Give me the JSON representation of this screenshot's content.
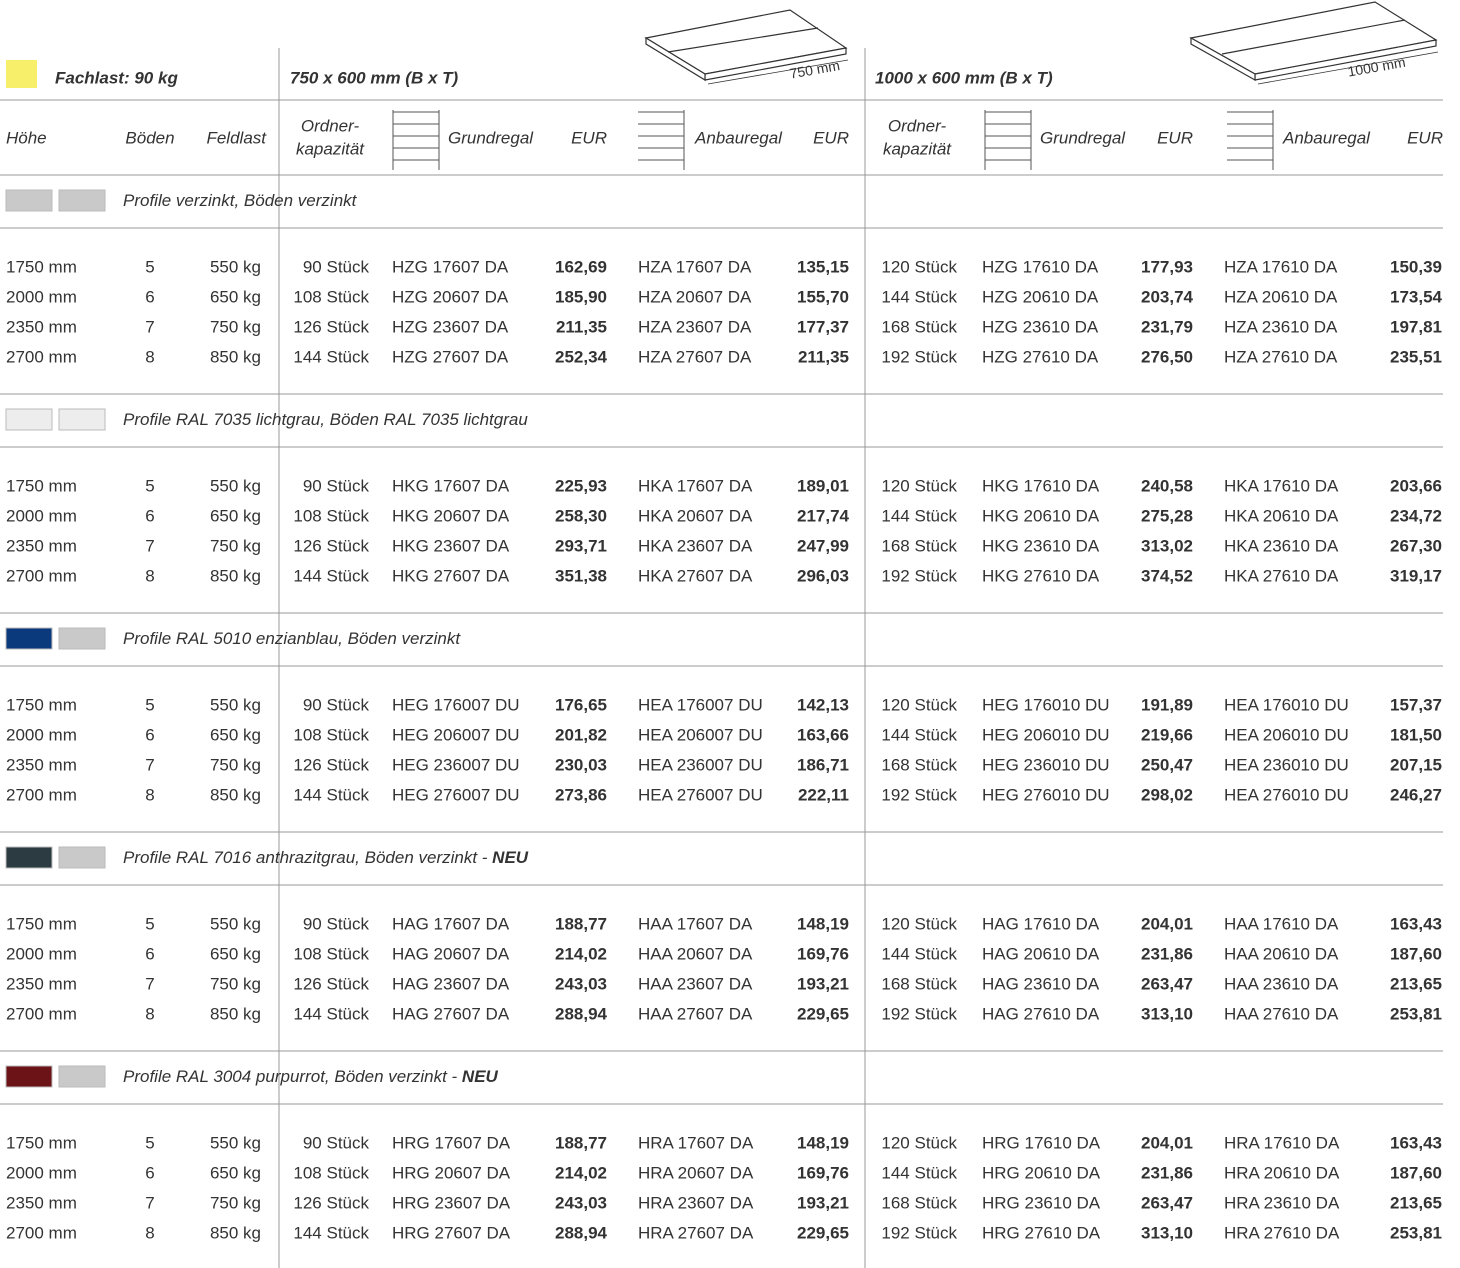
{
  "header": {
    "fachlast": "Fachlast: 90 kg",
    "size1": "750 x 600 mm (B x T)",
    "dim1": "750 mm",
    "size2": "1000 x 600 mm (B x T)",
    "dim2": "1000 mm"
  },
  "columns": [
    "Höhe",
    "Böden",
    "Feldlast",
    [
      "Ordner-",
      "kapazität"
    ],
    "Grundregal",
    "EUR",
    "Anbauregal",
    "EUR",
    [
      "Ordner-",
      "kapazität"
    ],
    "Grundregal",
    "EUR",
    "Anbauregal",
    "EUR"
  ],
  "sections": [
    {
      "colors": [
        "#c9c9c9",
        "#c9c9c9"
      ],
      "label": "Profile verzinkt, Böden verzinkt",
      "rows": [
        [
          "1750 mm",
          "5",
          "550 kg",
          "90 Stück",
          "HZG 17607 DA",
          "162,69",
          "HZA 17607 DA",
          "135,15",
          "120 Stück",
          "HZG 17610 DA",
          "177,93",
          "HZA 17610 DA",
          "150,39"
        ],
        [
          "2000 mm",
          "6",
          "650 kg",
          "108 Stück",
          "HZG 20607 DA",
          "185,90",
          "HZA 20607 DA",
          "155,70",
          "144 Stück",
          "HZG 20610 DA",
          "203,74",
          "HZA 20610 DA",
          "173,54"
        ],
        [
          "2350 mm",
          "7",
          "750 kg",
          "126 Stück",
          "HZG 23607 DA",
          "211,35",
          "HZA 23607 DA",
          "177,37",
          "168 Stück",
          "HZG 23610 DA",
          "231,79",
          "HZA 23610 DA",
          "197,81"
        ],
        [
          "2700 mm",
          "8",
          "850 kg",
          "144 Stück",
          "HZG 27607 DA",
          "252,34",
          "HZA 27607 DA",
          "211,35",
          "192 Stück",
          "HZG 27610 DA",
          "276,50",
          "HZA 27610 DA",
          "235,51"
        ]
      ]
    },
    {
      "colors": [
        "#ededed",
        "#ededed"
      ],
      "label": "Profile RAL 7035 lichtgrau, Böden RAL 7035 lichtgrau",
      "rows": [
        [
          "1750 mm",
          "5",
          "550 kg",
          "90 Stück",
          "HKG 17607 DA",
          "225,93",
          "HKA 17607 DA",
          "189,01",
          "120 Stück",
          "HKG 17610 DA",
          "240,58",
          "HKA 17610 DA",
          "203,66"
        ],
        [
          "2000 mm",
          "6",
          "650 kg",
          "108 Stück",
          "HKG 20607 DA",
          "258,30",
          "HKA 20607 DA",
          "217,74",
          "144 Stück",
          "HKG 20610 DA",
          "275,28",
          "HKA 20610 DA",
          "234,72"
        ],
        [
          "2350 mm",
          "7",
          "750 kg",
          "126 Stück",
          "HKG 23607 DA",
          "293,71",
          "HKA 23607 DA",
          "247,99",
          "168 Stück",
          "HKG 23610 DA",
          "313,02",
          "HKA 23610 DA",
          "267,30"
        ],
        [
          "2700 mm",
          "8",
          "850 kg",
          "144 Stück",
          "HKG 27607 DA",
          "351,38",
          "HKA 27607 DA",
          "296,03",
          "192 Stück",
          "HKG 27610 DA",
          "374,52",
          "HKA 27610 DA",
          "319,17"
        ]
      ]
    },
    {
      "colors": [
        "#0b3a7c",
        "#c9c9c9"
      ],
      "label": "Profile RAL 5010 enzianblau, Böden verzinkt",
      "rows": [
        [
          "1750 mm",
          "5",
          "550 kg",
          "90 Stück",
          "HEG 176007 DU",
          "176,65",
          "HEA 176007 DU",
          "142,13",
          "120 Stück",
          "HEG 176010 DU",
          "191,89",
          "HEA 176010 DU",
          "157,37"
        ],
        [
          "2000 mm",
          "6",
          "650 kg",
          "108 Stück",
          "HEG 206007 DU",
          "201,82",
          "HEA 206007 DU",
          "163,66",
          "144 Stück",
          "HEG 206010 DU",
          "219,66",
          "HEA 206010 DU",
          "181,50"
        ],
        [
          "2350 mm",
          "7",
          "750 kg",
          "126 Stück",
          "HEG 236007 DU",
          "230,03",
          "HEA 236007 DU",
          "186,71",
          "168 Stück",
          "HEG 236010 DU",
          "250,47",
          "HEA 236010 DU",
          "207,15"
        ],
        [
          "2700 mm",
          "8",
          "850 kg",
          "144 Stück",
          "HEG 276007 DU",
          "273,86",
          "HEA 276007 DU",
          "222,11",
          "192 Stück",
          "HEG 276010 DU",
          "298,02",
          "HEA 276010 DU",
          "246,27"
        ]
      ]
    },
    {
      "colors": [
        "#2b3b41",
        "#c9c9c9"
      ],
      "label": "Profile RAL 7016 anthrazitgrau, Böden verzinkt - ",
      "badge": "NEU",
      "rows": [
        [
          "1750 mm",
          "5",
          "550 kg",
          "90 Stück",
          "HAG 17607 DA",
          "188,77",
          "HAA 17607 DA",
          "148,19",
          "120 Stück",
          "HAG 17610 DA",
          "204,01",
          "HAA 17610 DA",
          "163,43"
        ],
        [
          "2000 mm",
          "6",
          "650 kg",
          "108 Stück",
          "HAG 20607 DA",
          "214,02",
          "HAA 20607 DA",
          "169,76",
          "144 Stück",
          "HAG 20610 DA",
          "231,86",
          "HAA 20610 DA",
          "187,60"
        ],
        [
          "2350 mm",
          "7",
          "750 kg",
          "126 Stück",
          "HAG 23607 DA",
          "243,03",
          "HAA 23607 DA",
          "193,21",
          "168 Stück",
          "HAG 23610 DA",
          "263,47",
          "HAA 23610 DA",
          "213,65"
        ],
        [
          "2700 mm",
          "8",
          "850 kg",
          "144 Stück",
          "HAG 27607 DA",
          "288,94",
          "HAA 27607 DA",
          "229,65",
          "192 Stück",
          "HAG 27610 DA",
          "313,10",
          "HAA 27610 DA",
          "253,81"
        ]
      ]
    },
    {
      "colors": [
        "#6b1317",
        "#c9c9c9"
      ],
      "label": "Profile RAL 3004 purpurrot, Böden verzinkt - ",
      "badge": "NEU",
      "rows": [
        [
          "1750 mm",
          "5",
          "550 kg",
          "90 Stück",
          "HRG 17607 DA",
          "188,77",
          "HRA 17607 DA",
          "148,19",
          "120 Stück",
          "HRG 17610 DA",
          "204,01",
          "HRA 17610 DA",
          "163,43"
        ],
        [
          "2000 mm",
          "6",
          "650 kg",
          "108 Stück",
          "HRG 20607 DA",
          "214,02",
          "HRA 20607 DA",
          "169,76",
          "144 Stück",
          "HRG 20610 DA",
          "231,86",
          "HRA 20610 DA",
          "187,60"
        ],
        [
          "2350 mm",
          "7",
          "750 kg",
          "126 Stück",
          "HRG 23607 DA",
          "243,03",
          "HRA 23607 DA",
          "193,21",
          "168 Stück",
          "HRG 23610 DA",
          "263,47",
          "HRA 23610 DA",
          "213,65"
        ],
        [
          "2700 mm",
          "8",
          "850 kg",
          "144 Stück",
          "HRG 27607 DA",
          "288,94",
          "HRA 27607 DA",
          "229,65",
          "192 Stück",
          "HRG 27610 DA",
          "313,10",
          "HRA 27610 DA",
          "253,81"
        ]
      ]
    }
  ]
}
